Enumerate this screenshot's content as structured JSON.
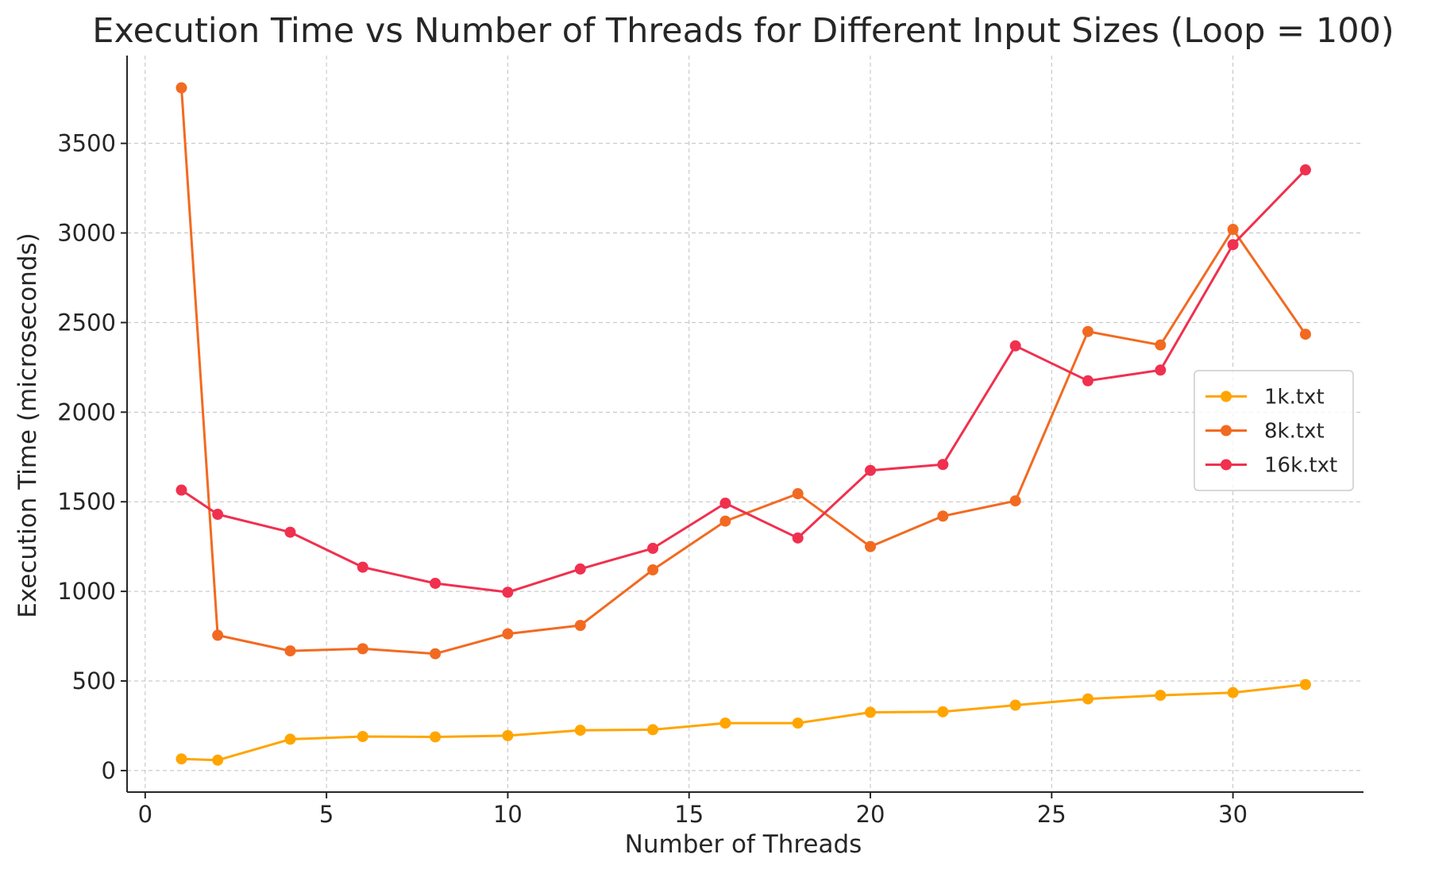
{
  "chart_data": {
    "type": "line",
    "title": "Execution Time vs Number of Threads for Different Input Sizes (Loop = 100)",
    "xlabel": "Number of Threads",
    "ylabel": "Execution Time (microseconds)",
    "xlim": [
      -0.5,
      33.6
    ],
    "ylim": [
      -120,
      3990
    ],
    "xticks": [
      0,
      5,
      10,
      15,
      20,
      25,
      30
    ],
    "yticks": [
      0,
      500,
      1000,
      1500,
      2000,
      2500,
      3000,
      3500
    ],
    "grid": true,
    "legend_position": "center-right",
    "x": [
      1,
      2,
      4,
      6,
      8,
      10,
      12,
      14,
      16,
      18,
      20,
      22,
      24,
      26,
      28,
      30,
      32
    ],
    "series": [
      {
        "name": "1k.txt",
        "color": "#FFA500",
        "values": [
          65,
          58,
          175,
          190,
          188,
          195,
          225,
          228,
          265,
          265,
          325,
          328,
          365,
          400,
          420,
          435,
          480
        ]
      },
      {
        "name": "8k.txt",
        "color": "#F26A21",
        "values": [
          3810,
          755,
          668,
          680,
          652,
          763,
          810,
          1120,
          1392,
          1545,
          1250,
          1420,
          1505,
          2450,
          2375,
          3020,
          2435
        ]
      },
      {
        "name": "16k.txt",
        "color": "#F0304F",
        "values": [
          1565,
          1430,
          1330,
          1135,
          1045,
          995,
          1125,
          1240,
          1492,
          1298,
          1675,
          1708,
          2370,
          2175,
          2235,
          2935,
          3352
        ]
      }
    ]
  }
}
